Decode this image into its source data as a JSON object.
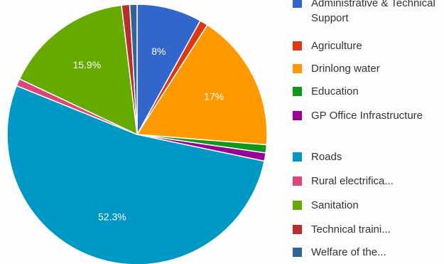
{
  "chart_data": {
    "type": "pie",
    "slices": [
      {
        "name": "Administrative & Technical Support",
        "value": 8.0,
        "label": "8%",
        "color": "#3366cc"
      },
      {
        "name": "Agriculture",
        "value": 1.0,
        "label": "",
        "color": "#dc3912"
      },
      {
        "name": "Drinlong water",
        "value": 17.0,
        "label": "17%",
        "color": "#ff9900"
      },
      {
        "name": "Education",
        "value": 1.0,
        "label": "",
        "color": "#109618"
      },
      {
        "name": "GP Office Infrastructure",
        "value": 1.0,
        "label": "",
        "color": "#990099"
      },
      {
        "name": "Roads",
        "value": 52.3,
        "label": "52.3%",
        "color": "#0099c6"
      },
      {
        "name": "Rural electrifica...",
        "value": 0.9,
        "label": "",
        "color": "#dd4477"
      },
      {
        "name": "Sanitation",
        "value": 15.9,
        "label": "15.9%",
        "color": "#66aa00"
      },
      {
        "name": "Technical traini...",
        "value": 1.0,
        "label": "",
        "color": "#b82e2e"
      },
      {
        "name": "Welfare of the...",
        "value": 0.9,
        "label": "",
        "color": "#316395"
      }
    ],
    "start_angle_deg": 0,
    "legend_position": "right"
  }
}
